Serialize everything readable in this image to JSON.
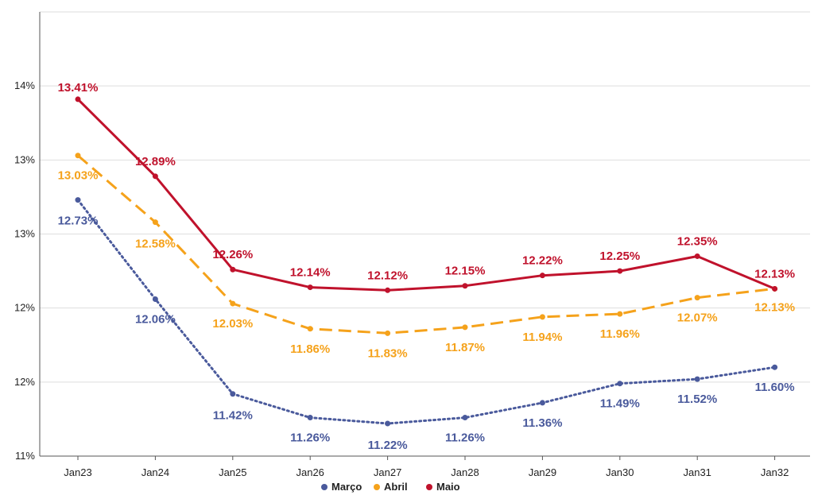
{
  "chart_data": {
    "type": "line",
    "title": "",
    "xlabel": "",
    "ylabel": "",
    "categories": [
      "Jan23",
      "Jan24",
      "Jan25",
      "Jan26",
      "Jan27",
      "Jan28",
      "Jan29",
      "Jan30",
      "Jan31",
      "Jan32"
    ],
    "ylim": [
      11.0,
      14.0
    ],
    "yticks": [
      {
        "value": 11.0,
        "label": "11%"
      },
      {
        "value": 11.5,
        "label": "12%"
      },
      {
        "value": 12.0,
        "label": "12%"
      },
      {
        "value": 12.5,
        "label": "13%"
      },
      {
        "value": 13.0,
        "label": "13%"
      },
      {
        "value": 13.5,
        "label": "14%"
      }
    ],
    "grid": true,
    "legend_position": "bottom-center",
    "series": [
      {
        "name": "Março",
        "color": "#4a5a9c",
        "style": "dotted",
        "values": [
          12.73,
          12.06,
          11.42,
          11.26,
          11.22,
          11.26,
          11.36,
          11.49,
          11.52,
          11.6
        ],
        "labels": [
          "12.73%",
          "12.06%",
          "11.42%",
          "11.26%",
          "11.22%",
          "11.26%",
          "11.36%",
          "11.49%",
          "11.52%",
          "11.60%"
        ]
      },
      {
        "name": "Abril",
        "color": "#f5a21b",
        "style": "dashed",
        "values": [
          13.03,
          12.58,
          12.03,
          11.86,
          11.83,
          11.87,
          11.94,
          11.96,
          12.07,
          12.13
        ],
        "labels": [
          "13.03%",
          "12.58%",
          "12.03%",
          "11.86%",
          "11.83%",
          "11.87%",
          "11.94%",
          "11.96%",
          "12.07%",
          "12.13%"
        ]
      },
      {
        "name": "Maio",
        "color": "#c0122c",
        "style": "solid",
        "values": [
          13.41,
          12.89,
          12.26,
          12.14,
          12.12,
          12.15,
          12.22,
          12.25,
          12.35,
          12.13
        ],
        "labels": [
          "13.41%",
          "12.89%",
          "12.26%",
          "12.14%",
          "12.12%",
          "12.15%",
          "12.22%",
          "12.25%",
          "12.35%",
          "12.13%"
        ]
      }
    ]
  }
}
